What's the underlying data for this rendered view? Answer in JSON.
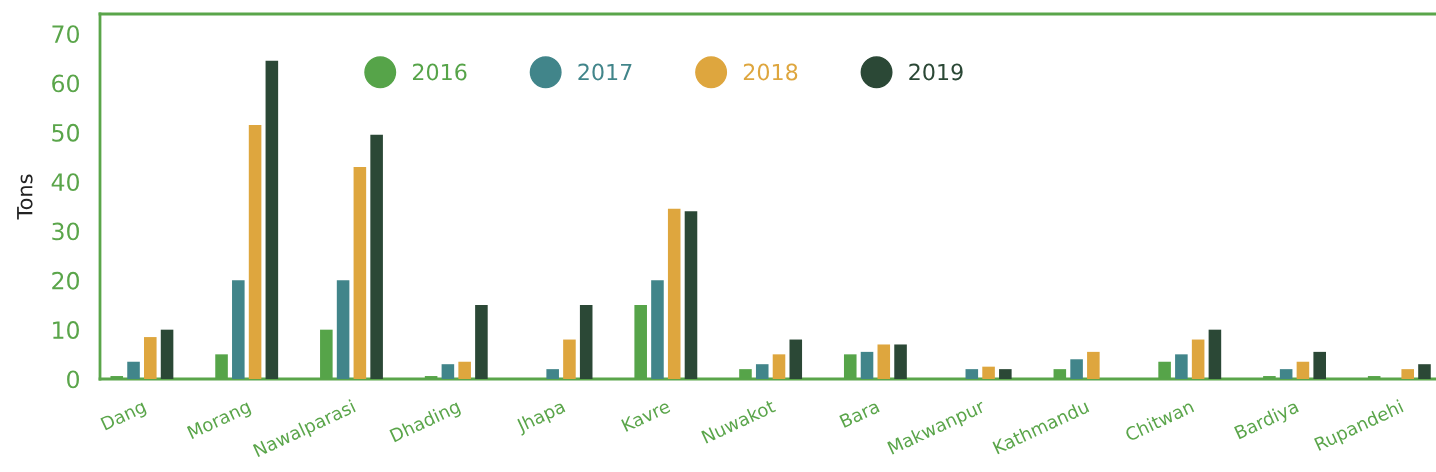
{
  "chart_data": {
    "type": "bar",
    "ylabel": "Tons",
    "categories": [
      "Dang",
      "Morang",
      "Nawalparasi",
      "Dhading",
      "Jhapa",
      "Kavre",
      "Nuwakot",
      "Bara",
      "Makwanpur",
      "Kathmandu",
      "Chitwan",
      "Bardiya",
      "Rupandehi"
    ],
    "series": [
      {
        "name": "2016",
        "color": "#56a449",
        "values": [
          0.6,
          5,
          10,
          0.6,
          0,
          15,
          2,
          5,
          0,
          2,
          3.5,
          0.6,
          0.6
        ]
      },
      {
        "name": "2017",
        "color": "#41858a",
        "values": [
          3.5,
          20,
          20,
          3,
          2,
          20,
          3,
          5.5,
          2,
          4,
          5,
          2,
          0
        ]
      },
      {
        "name": "2018",
        "color": "#dea63e",
        "values": [
          8.5,
          51.5,
          43,
          3.5,
          8,
          34.5,
          5,
          7,
          2.5,
          5.5,
          8,
          3.5,
          2
        ]
      },
      {
        "name": "2019",
        "color": "#2b4836",
        "values": [
          10,
          64.5,
          49.5,
          15,
          15,
          34,
          8,
          7,
          2,
          0,
          10,
          5.5,
          3
        ]
      }
    ],
    "ylim": [
      0,
      74
    ],
    "yticks": [
      0,
      10,
      20,
      30,
      40,
      50,
      60,
      70
    ],
    "grid": false,
    "legend": "top"
  }
}
